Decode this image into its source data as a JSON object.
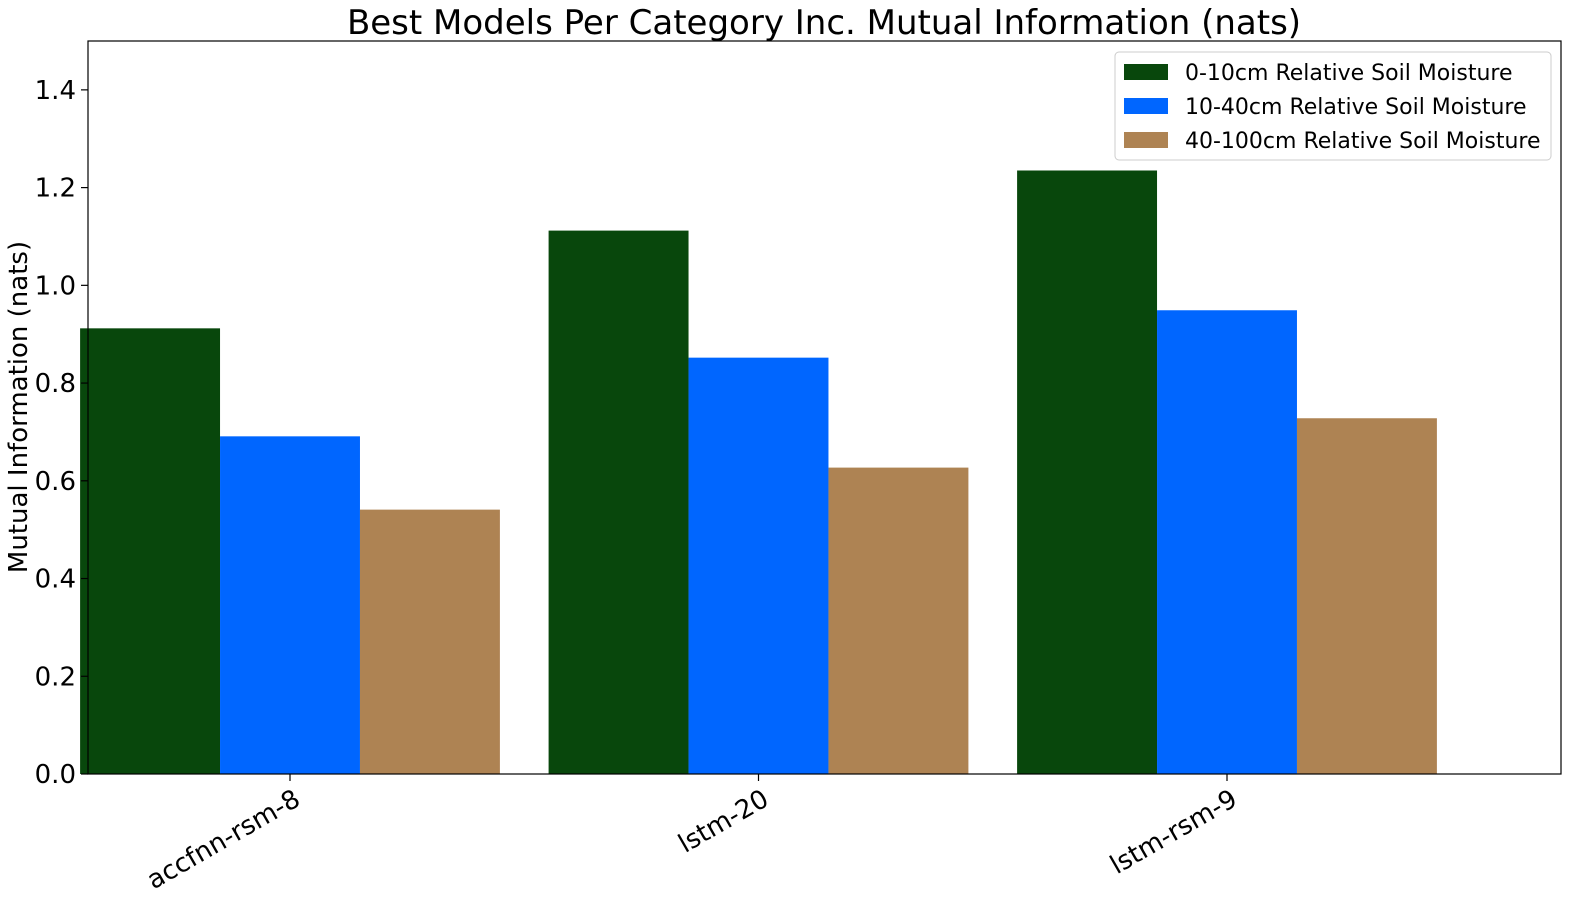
{
  "chart_data": {
    "type": "bar",
    "title": "Best Models Per Category Inc. Mutual Information (nats)",
    "xlabel": "",
    "ylabel": "Mutual Information (nats)",
    "categories": [
      "accfnn-rsm-8",
      "lstm-20",
      "lstm-rsm-9"
    ],
    "series": [
      {
        "name": "0-10cm Relative Soil Moisture",
        "color": "#08470c",
        "values": [
          0.912,
          1.112,
          1.235
        ]
      },
      {
        "name": "10-40cm Relative Soil Moisture",
        "color": "#0066ff",
        "values": [
          0.691,
          0.852,
          0.949
        ]
      },
      {
        "name": "40-100cm Relative Soil Moisture",
        "color": "#ae8353",
        "values": [
          0.541,
          0.627,
          0.728
        ]
      }
    ],
    "ylim": [
      0,
      1.5
    ],
    "yticks": [
      "0.0",
      "0.2",
      "0.4",
      "0.6",
      "0.8",
      "1.0",
      "1.2",
      "1.4"
    ],
    "ytick_values": [
      0,
      0.2,
      0.4,
      0.6,
      0.8,
      1.0,
      1.2,
      1.4
    ],
    "grid": false,
    "legend_position": "top-right"
  }
}
